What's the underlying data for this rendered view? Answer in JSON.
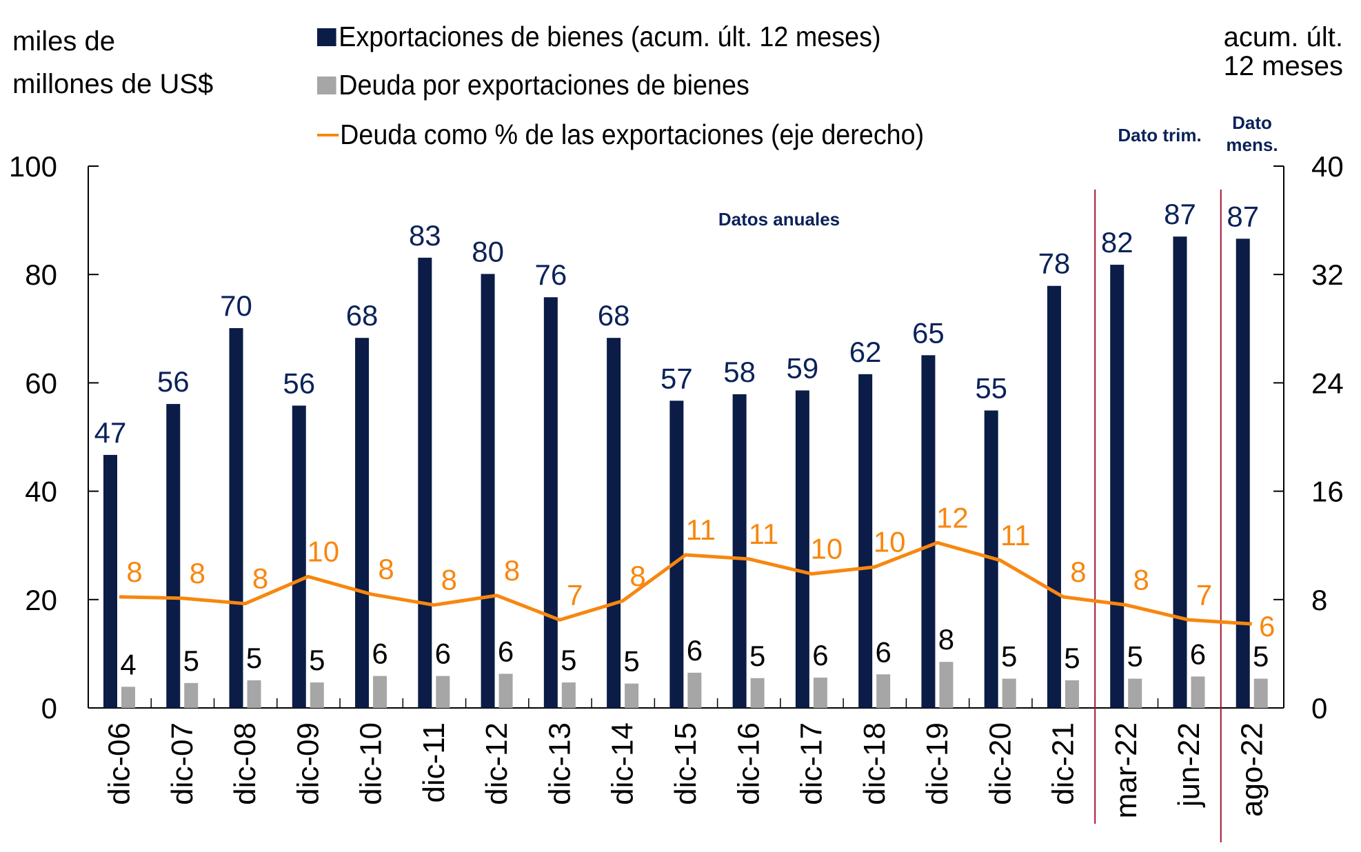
{
  "chart_data": {
    "type": "bar",
    "title": "",
    "left_axis_label": "miles de millones de US$",
    "right_axis_label": "acum. últ. 12 meses",
    "ylim_left": [
      0,
      100
    ],
    "yticks_left": [
      0,
      20,
      40,
      60,
      80,
      100
    ],
    "ylim_right": [
      0,
      40
    ],
    "yticks_right": [
      0,
      8,
      16,
      24,
      32,
      40
    ],
    "grid": false,
    "legend_position": "top",
    "categories": [
      "dic-06",
      "dic-07",
      "dic-08",
      "dic-09",
      "dic-10",
      "dic-11",
      "dic-12",
      "dic-13",
      "dic-14",
      "dic-15",
      "dic-16",
      "dic-17",
      "dic-18",
      "dic-19",
      "dic-20",
      "dic-21",
      "mar-22",
      "jun-22",
      "ago-22"
    ],
    "series": [
      {
        "name": "Exportaciones de bienes (acum. últ. 12 meses)",
        "type": "bar",
        "axis": "left",
        "color": "#0b1c47",
        "values": [
          46.7,
          56.1,
          70.1,
          55.8,
          68.3,
          83.1,
          80.1,
          75.8,
          68.3,
          56.7,
          57.9,
          58.6,
          61.6,
          65.1,
          54.9,
          77.9,
          81.8,
          87.0,
          86.6
        ],
        "labels": [
          "47",
          "56",
          "70",
          "56",
          "68",
          "83",
          "80",
          "76",
          "68",
          "57",
          "58",
          "59",
          "62",
          "65",
          "55",
          "78",
          "82",
          "87",
          "87"
        ],
        "label_color": "#0b2259"
      },
      {
        "name": "Deuda por exportaciones de bienes",
        "type": "bar",
        "axis": "left",
        "color": "#a6a6a6",
        "values": [
          3.9,
          4.6,
          5.1,
          4.7,
          5.9,
          5.9,
          6.3,
          4.7,
          4.5,
          6.5,
          5.5,
          5.6,
          6.2,
          8.5,
          5.4,
          5.1,
          5.4,
          5.8,
          5.4
        ],
        "labels": [
          "4",
          "5",
          "5",
          "5",
          "6",
          "6",
          "6",
          "5",
          "5",
          "6",
          "5",
          "6",
          "6",
          "8",
          "5",
          "5",
          "5",
          "6",
          "5"
        ],
        "label_color": "#000000"
      },
      {
        "name": "Deuda como % de las exportaciones (eje derecho)",
        "type": "line",
        "axis": "right",
        "color": "#f7870f",
        "values": [
          8.2,
          8.1,
          7.7,
          9.7,
          8.4,
          7.6,
          8.3,
          6.5,
          7.9,
          11.3,
          11.0,
          9.9,
          10.4,
          12.2,
          10.9,
          8.2,
          7.6,
          6.5,
          6.2
        ],
        "labels": [
          "8",
          "8",
          "8",
          "10",
          "8",
          "8",
          "8",
          "7",
          "8",
          "11",
          "11",
          "10",
          "10",
          "12",
          "11",
          "8",
          "8",
          "7",
          "6"
        ],
        "label_color": "#f7870f"
      }
    ],
    "annotations": {
      "annual": "Datos anuales",
      "quarterly": "Dato trim.",
      "monthly_line1": "Dato",
      "monthly_line2": "mens."
    },
    "separator_color": "#a6142e"
  },
  "axis_titles": {
    "left_line1": "miles de",
    "left_line2": "millones de US$",
    "right_line1": "acum. últ.",
    "right_line2": "12 meses"
  }
}
